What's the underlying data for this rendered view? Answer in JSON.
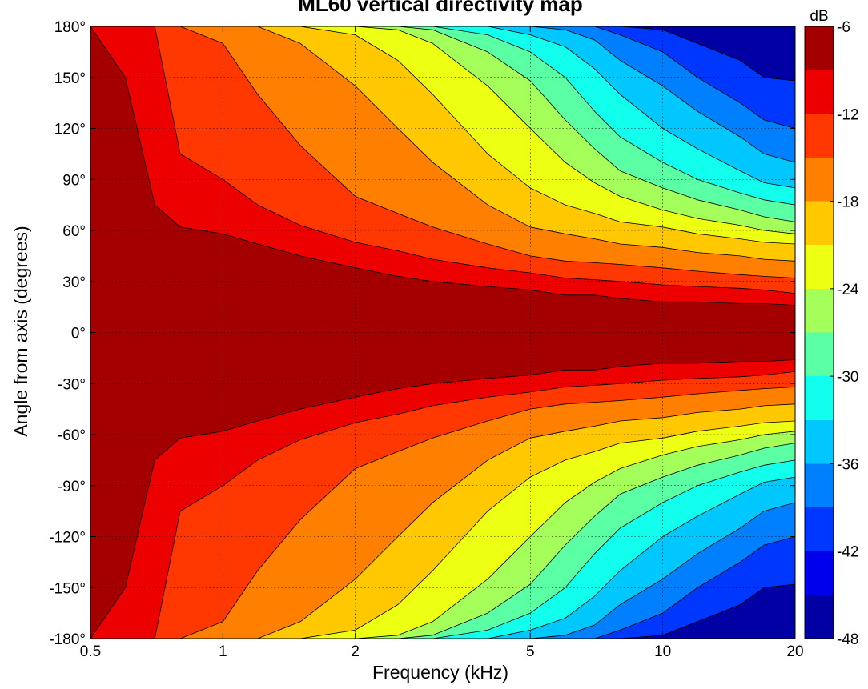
{
  "chart_data": {
    "type": "heatmap",
    "title": "ML60 vertical directivity map",
    "xlabel": "Frequency (kHz)",
    "ylabel": "Angle from axis (degrees)",
    "x_scale": "log",
    "xlim": [
      0.5,
      20
    ],
    "ylim": [
      -180,
      180
    ],
    "x_ticks": [
      0.5,
      1,
      2,
      5,
      10,
      20
    ],
    "x_tick_labels": [
      "0.5",
      "1",
      "2",
      "5",
      "10",
      "20"
    ],
    "y_ticks": [
      180,
      150,
      120,
      90,
      60,
      30,
      0,
      -30,
      -60,
      -90,
      -120,
      -150,
      -180
    ],
    "y_tick_labels": [
      "180°",
      "150°",
      "120°",
      "90°",
      "60°",
      "30°",
      "0°",
      "-30°",
      "-60°",
      "-90°",
      "-120°",
      "-150°",
      "-180°"
    ],
    "grid": true,
    "colorbar": {
      "unit_label": "dB",
      "range": [
        -48,
        -6
      ],
      "ticks": [
        -6,
        -12,
        -18,
        -24,
        -30,
        -36,
        -42,
        -48
      ],
      "tick_labels": [
        "-6",
        "-12",
        "-18",
        "-24",
        "-30",
        "-36",
        "-42",
        "-48"
      ],
      "colormap": "jet",
      "levels": [
        -48,
        -45,
        -42,
        -39,
        -36,
        -33,
        -30,
        -27,
        -24,
        -21,
        -18,
        -15,
        -12,
        -9,
        -6
      ]
    },
    "contour_levels_dB": [
      -9,
      -12,
      -15,
      -18,
      -21,
      -24,
      -27,
      -30,
      -33,
      -36,
      -39,
      -42
    ],
    "contour_half_angle_deg": {
      "frequency_kHz": [
        0.5,
        0.6,
        0.7,
        0.8,
        1,
        1.2,
        1.5,
        2,
        2.5,
        3,
        4,
        5,
        6,
        7,
        8,
        10,
        12,
        15,
        17,
        20
      ],
      "series": [
        {
          "level_dB": -9,
          "values": [
            180,
            150,
            75,
            62,
            58,
            52,
            45,
            38,
            33,
            30,
            27,
            25,
            22,
            22,
            20,
            18,
            18,
            17,
            17,
            16
          ]
        },
        {
          "level_dB": -12,
          "values": [
            180,
            180,
            180,
            105,
            90,
            75,
            63,
            53,
            48,
            43,
            38,
            35,
            32,
            31,
            30,
            28,
            27,
            26,
            25,
            23
          ]
        },
        {
          "level_dB": -15,
          "values": [
            180,
            180,
            180,
            180,
            170,
            140,
            110,
            80,
            70,
            62,
            52,
            45,
            42,
            41,
            40,
            38,
            36,
            34,
            33,
            32
          ]
        },
        {
          "level_dB": -18,
          "values": [
            180,
            180,
            180,
            180,
            180,
            180,
            170,
            145,
            120,
            100,
            75,
            62,
            58,
            55,
            52,
            50,
            47,
            45,
            43,
            42
          ]
        },
        {
          "level_dB": -21,
          "values": [
            180,
            180,
            180,
            180,
            180,
            180,
            180,
            175,
            160,
            140,
            105,
            85,
            75,
            70,
            65,
            62,
            58,
            55,
            53,
            52
          ]
        },
        {
          "level_dB": -24,
          "values": [
            180,
            180,
            180,
            180,
            180,
            180,
            180,
            180,
            178,
            170,
            145,
            120,
            100,
            88,
            80,
            72,
            67,
            63,
            60,
            58
          ]
        },
        {
          "level_dB": -27,
          "values": [
            180,
            180,
            180,
            180,
            180,
            180,
            180,
            180,
            180,
            178,
            165,
            148,
            125,
            108,
            95,
            85,
            78,
            72,
            68,
            65
          ]
        },
        {
          "level_dB": -30,
          "values": [
            180,
            180,
            180,
            180,
            180,
            180,
            180,
            180,
            180,
            180,
            175,
            165,
            150,
            130,
            115,
            100,
            90,
            82,
            78,
            75
          ]
        },
        {
          "level_dB": -33,
          "values": [
            180,
            180,
            180,
            180,
            180,
            180,
            180,
            180,
            180,
            180,
            180,
            175,
            168,
            155,
            140,
            120,
            108,
            95,
            88,
            85
          ]
        },
        {
          "level_dB": -36,
          "values": [
            180,
            180,
            180,
            180,
            180,
            180,
            180,
            180,
            180,
            180,
            180,
            180,
            178,
            172,
            160,
            145,
            130,
            115,
            105,
            100
          ]
        },
        {
          "level_dB": -39,
          "values": [
            180,
            180,
            180,
            180,
            180,
            180,
            180,
            180,
            180,
            180,
            180,
            180,
            180,
            180,
            175,
            165,
            150,
            135,
            125,
            120
          ]
        },
        {
          "level_dB": -42,
          "values": [
            180,
            180,
            180,
            180,
            180,
            180,
            180,
            180,
            180,
            180,
            180,
            180,
            180,
            180,
            180,
            178,
            170,
            160,
            150,
            148
          ]
        }
      ]
    }
  }
}
